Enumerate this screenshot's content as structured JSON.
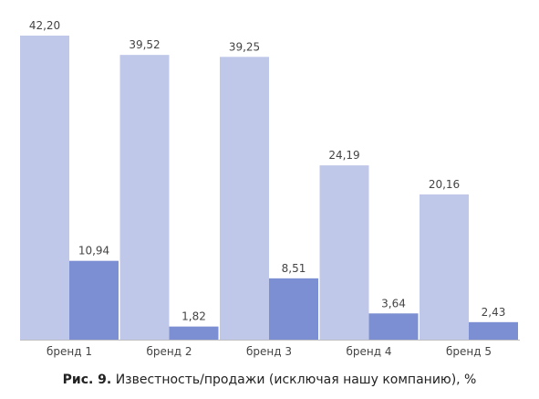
{
  "caption": {
    "number": "Рис. 9.",
    "text": " Известность/продажи (исключая нашу компанию), %"
  },
  "chart_data": {
    "type": "bar",
    "categories": [
      "бренд 1",
      "бренд 2",
      "бренд 3",
      "бренд 4",
      "бренд 5"
    ],
    "series": [
      {
        "values": [
          42.2,
          39.52,
          39.25,
          24.19,
          20.16
        ],
        "color": "#c0c8ea"
      },
      {
        "values": [
          10.94,
          1.82,
          8.51,
          3.64,
          2.43
        ],
        "color": "#7b8fd2"
      }
    ],
    "value_labels": [
      [
        "42,20",
        "39,52",
        "39,25",
        "24,19",
        "20,16"
      ],
      [
        "10,94",
        "1,82",
        "8,51",
        "3,64",
        "2,43"
      ]
    ],
    "ylim": [
      0,
      42.2
    ],
    "grid": false,
    "legend": "none",
    "axis_line_color": "#bfbfbf"
  }
}
